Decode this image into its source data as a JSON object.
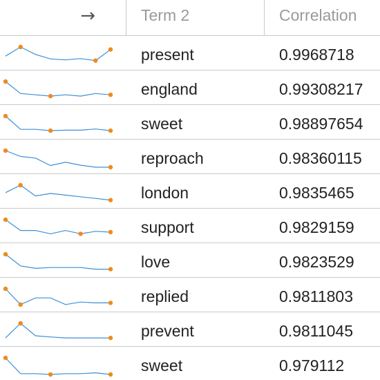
{
  "header": {
    "arrow": "→",
    "term_label": "Term 2",
    "corr_label": "Correlation"
  },
  "colors": {
    "line": "#3b8fd6",
    "dot": "#f08a1c",
    "border": "#c9c9c9"
  },
  "rows": [
    {
      "term": "present",
      "corr": "0.9968718",
      "spark": [
        0.55,
        0.0,
        0.45,
        0.72,
        0.78,
        0.7,
        0.82,
        0.15
      ],
      "dots": [
        1,
        6,
        7
      ]
    },
    {
      "term": "england",
      "corr": "0.99308217",
      "spark": [
        0.0,
        0.72,
        0.8,
        0.88,
        0.8,
        0.88,
        0.72,
        0.8
      ],
      "dots": [
        0,
        3,
        7
      ]
    },
    {
      "term": "sweet",
      "corr": "0.98897654",
      "spark": [
        0.0,
        0.8,
        0.8,
        0.88,
        0.85,
        0.85,
        0.78,
        0.88
      ],
      "dots": [
        0,
        3,
        7
      ]
    },
    {
      "term": "reproach",
      "corr": "0.98360115",
      "spark": [
        0.0,
        0.35,
        0.45,
        0.9,
        0.7,
        0.88,
        1.0,
        1.0
      ],
      "dots": [
        0,
        7
      ]
    },
    {
      "term": "london",
      "corr": "0.9835465",
      "spark": [
        0.45,
        0.0,
        0.65,
        0.5,
        0.6,
        0.7,
        0.8,
        0.9
      ],
      "dots": [
        1,
        7
      ]
    },
    {
      "term": "support",
      "corr": "0.9829159",
      "spark": [
        0.0,
        0.65,
        0.65,
        0.85,
        0.65,
        0.85,
        0.7,
        0.75
      ],
      "dots": [
        0,
        5,
        7
      ]
    },
    {
      "term": "love",
      "corr": "0.9823529",
      "spark": [
        0.0,
        0.7,
        0.85,
        0.8,
        0.8,
        0.8,
        0.9,
        0.9
      ],
      "dots": [
        0,
        7
      ]
    },
    {
      "term": "replied",
      "corr": "0.9811803",
      "spark": [
        0.0,
        0.95,
        0.55,
        0.55,
        0.95,
        0.8,
        0.85,
        0.85
      ],
      "dots": [
        0,
        1,
        7
      ]
    },
    {
      "term": "prevent",
      "corr": "0.9811045",
      "spark": [
        0.88,
        0.0,
        0.75,
        0.82,
        0.88,
        0.88,
        0.88,
        0.88
      ],
      "dots": [
        1,
        7
      ]
    },
    {
      "term": "sweet",
      "corr": "0.979112",
      "spark": [
        0.0,
        0.95,
        0.95,
        1.0,
        0.95,
        0.95,
        0.9,
        1.0
      ],
      "dots": [
        0,
        3,
        7
      ]
    }
  ]
}
